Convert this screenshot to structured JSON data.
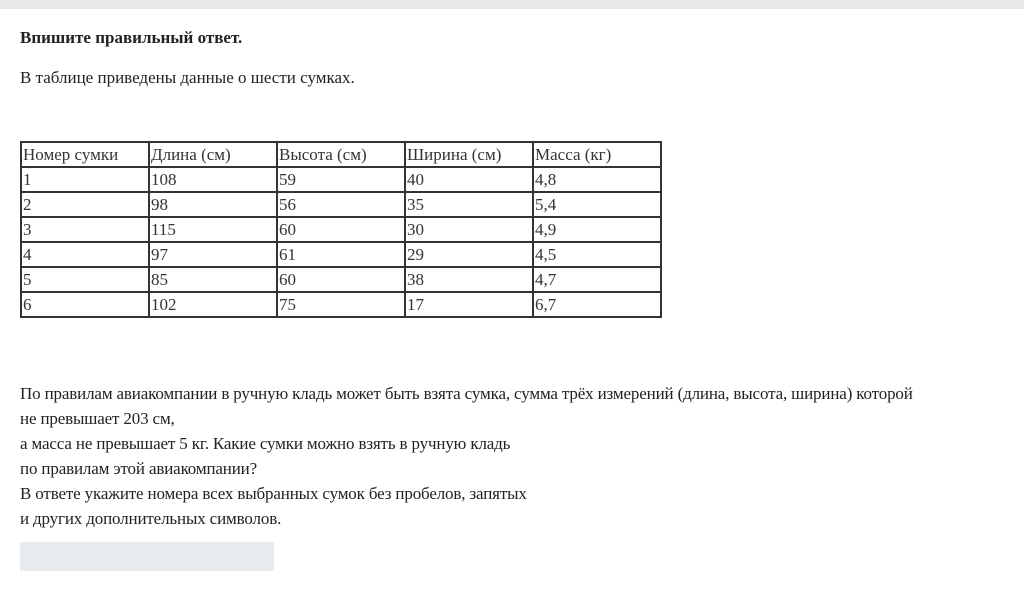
{
  "title": "Впишите правильный ответ.",
  "intro": "В таблице приведены данные о шести сумках.",
  "table": {
    "headers": [
      "Номер сумки",
      "Длина (см)",
      "Высота (см)",
      "Ширина (см)",
      "Масса (кг)"
    ],
    "rows": [
      [
        "1",
        "108",
        "59",
        "40",
        "4,8"
      ],
      [
        "2",
        "98",
        "56",
        "35",
        "5,4"
      ],
      [
        "3",
        "115",
        "60",
        "30",
        "4,9"
      ],
      [
        "4",
        "97",
        "61",
        "29",
        "4,5"
      ],
      [
        "5",
        "85",
        "60",
        "38",
        "4,7"
      ],
      [
        "6",
        "102",
        "75",
        "17",
        "6,7"
      ]
    ]
  },
  "question_lines": [
    "По правилам авиакомпании в ручную кладь может быть взята сумка, сумма трёх измерений (длина, высота, ширина) которой",
    "не превышает 203 см,",
    "а масса не превышает 5 кг. Какие сумки можно взять в ручную кладь",
    "по правилам этой авиакомпании?",
    "В ответе укажите номера всех выбранных сумок без пробелов, запятых",
    "и других дополнительных символов."
  ],
  "answer": {
    "value": "",
    "placeholder": ""
  }
}
